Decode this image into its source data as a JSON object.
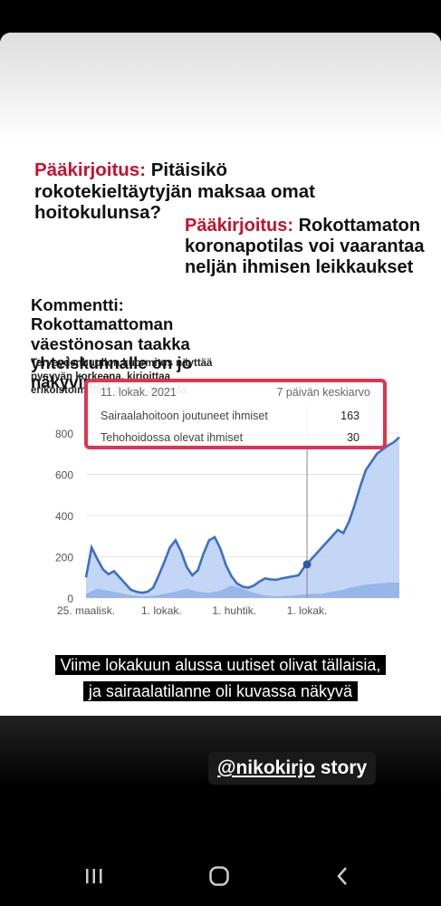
{
  "headlines": {
    "h1": {
      "label": "Pääkirjoitus:",
      "text": " Pitäisikö rokotekieltäytyjän maksaa omat hoitokulunsa?"
    },
    "h2": {
      "label": "Pääkirjoitus:",
      "text": " Rokottamaton koronapotilas voi vaarantaa neljän ihmisen leikkaukset"
    },
    "h3": {
      "title": "Kommentti: Rokottamattoman väestönosan taakka yhteiskunnalle on jo näkyvissä",
      "sub": "Terveydenhuollon kuormitus näyttää pysyvän korkeana, kirjoittaa erikoistoimittaja Jouko Juonala."
    }
  },
  "tooltip": {
    "date": "11. lokak. 2021",
    "avg_label": "7 päivän keskiarvo",
    "rows": [
      {
        "label": "Sairaalahoitoon joutuneet ihmiset",
        "value": "163"
      },
      {
        "label": "Tehohoidossa olevat ihmiset",
        "value": "30"
      }
    ]
  },
  "chart_data": {
    "type": "area",
    "title": "",
    "xlabel": "",
    "ylabel": "",
    "ylim": [
      0,
      800
    ],
    "yticks": [
      "0",
      "200",
      "400",
      "600",
      "800"
    ],
    "xticks": [
      {
        "label": "25. maalisk.",
        "x": 0
      },
      {
        "label": "1. lokak.",
        "x": 27
      },
      {
        "label": "1. huhtik.",
        "x": 53
      },
      {
        "label": "1. lokak.",
        "x": 79
      }
    ],
    "series": [
      {
        "name": "Sairaalahoitoon joutuneet ihmiset",
        "x": [
          0,
          2,
          4,
          6,
          8,
          10,
          12,
          14,
          16,
          18,
          20,
          22,
          24,
          26,
          28,
          30,
          32,
          34,
          36,
          38,
          40,
          42,
          44,
          46,
          48,
          50,
          52,
          54,
          56,
          58,
          60,
          62,
          64,
          66,
          68,
          70,
          72,
          74,
          76,
          78,
          80,
          82,
          84,
          86,
          88,
          90,
          92,
          94,
          96,
          98,
          100,
          102,
          104,
          106,
          108,
          110,
          112
        ],
        "values": [
          100,
          245,
          190,
          140,
          115,
          130,
          100,
          70,
          40,
          30,
          25,
          30,
          50,
          110,
          175,
          245,
          280,
          225,
          150,
          110,
          135,
          215,
          280,
          295,
          240,
          160,
          105,
          70,
          55,
          50,
          60,
          80,
          95,
          90,
          88,
          95,
          100,
          105,
          110,
          150,
          180,
          210,
          240,
          270,
          300,
          330,
          315,
          370,
          450,
          540,
          620,
          660,
          700,
          720,
          740,
          755,
          780
        ],
        "color": "#3f6fc4"
      },
      {
        "name": "Tehohoidossa olevat ihmiset",
        "x": [
          0,
          4,
          8,
          12,
          16,
          20,
          24,
          28,
          32,
          36,
          40,
          44,
          48,
          52,
          56,
          60,
          64,
          68,
          72,
          76,
          80,
          84,
          88,
          92,
          96,
          100,
          104,
          108,
          112
        ],
        "values": [
          20,
          45,
          35,
          25,
          12,
          8,
          10,
          20,
          30,
          45,
          30,
          25,
          35,
          60,
          45,
          25,
          12,
          8,
          10,
          15,
          20,
          20,
          30,
          40,
          55,
          65,
          70,
          75,
          75
        ],
        "color": "#6d92d6"
      }
    ],
    "highlight": {
      "x": 79,
      "value": 163
    }
  },
  "caption": {
    "line1": "Viime lokakuun alussa uutiset olivat tällaisia,",
    "line2": "ja sairaalatilanne oli kuvassa näkyvä"
  },
  "story_tag": {
    "handle": "@nikokirjo",
    "suffix": " story"
  },
  "nav": {
    "recent": "recent-apps-icon",
    "home": "home-icon",
    "back": "back-icon"
  }
}
